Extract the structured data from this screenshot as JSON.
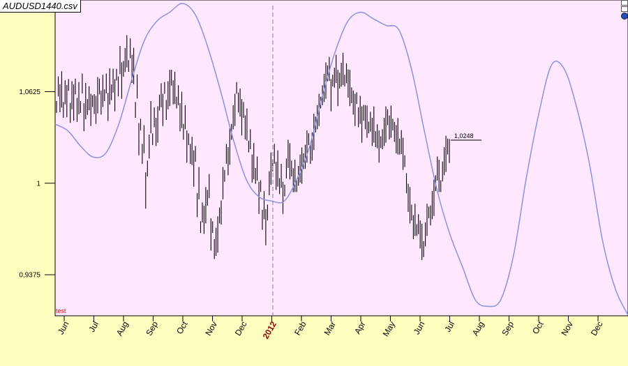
{
  "window": {
    "title": "AUDUSD1440.csv"
  },
  "colors": {
    "background": "#ffffc0",
    "plot_area": "#ffe8ff",
    "price_bars": "#000000",
    "forecast_line": "#8c96e6",
    "test_label": "#e01010",
    "year_label": "#8b0000"
  },
  "indicator_label": "test",
  "last_price_label": "1,0248",
  "chart_data": [
    {
      "type": "ohlc",
      "series": [
        {
          "name": "",
          "values": [
            1.052,
            1.066,
            1.058,
            1.064,
            1.05,
            1.062,
            1.056,
            1.067,
            1.048,
            1.06,
            1.055,
            1.066,
            1.05,
            1.058,
            1.052,
            1.068,
            1.045,
            1.056,
            1.052,
            1.058,
            1.05,
            1.056,
            1.054,
            1.05,
            1.06,
            1.066,
            1.055,
            1.063,
            1.06,
            1.068,
            1.052,
            1.066,
            1.062,
            1.07,
            1.06,
            1.074,
            1.066,
            1.084,
            1.07,
            1.078,
            1.084,
            1.09,
            1.08,
            1.092,
            1.078,
            1.08,
            1.05,
            1.066,
            1.03,
            1.04,
            1.02,
            1.03,
            0.995,
            1.01,
            1.025,
            1.045,
            1.03,
            1.045,
            1.035,
            1.04,
            1.055,
            1.06,
            1.05,
            1.065,
            1.05,
            1.06,
            1.065,
            1.072,
            1.062,
            1.065,
            1.055,
            1.06,
            1.045,
            1.05,
            1.035,
            1.045,
            1.025,
            1.03,
            1.02,
            1.022,
            1.01,
            1.02,
            0.985,
            1,
            0.97,
            0.98,
            0.975,
            0.985,
            0.99,
            0.998,
            0.965,
            0.97,
            0.955,
            0.96,
            0.965,
            0.978,
            0.98,
            1,
            1.005,
            1.02,
            1.015,
            1.025,
            1.035,
            1.045,
            1.05,
            1.065,
            1.055,
            1.055,
            1.045,
            1.05,
            1.038,
            1.04,
            1.025,
            1.03,
            1.01,
            1.015,
            1.005,
            1.01,
            0.99,
            0.998,
            0.975,
            0.985,
            0.97,
            0.98,
            1,
            1.01,
            1.012,
            1.02,
            1.005,
            1.01,
            0.998,
            1.005,
            0.99,
            0.995,
            1.01,
            1.02,
            1.015,
            1.01,
            1.002,
            1.005,
            0.998,
            1.005,
            1.01,
            1.012,
            1.015,
            1.018,
            1.025,
            1.03,
            1.02,
            1.025,
            1.035,
            1.04,
            1.045,
            1.05,
            1.055,
            1.06,
            1.065,
            1.07,
            1.075,
            1.078,
            1.06,
            1.07,
            1.072,
            1.078,
            1.065,
            1.07,
            1.074,
            1.078,
            1.07,
            1.075,
            1.068,
            1.065,
            1.06,
            1.055,
            1.05,
            1.058,
            1.045,
            1.05,
            1.04,
            1.048,
            1.045,
            1.042,
            1.038,
            1.042,
            1.035,
            1.04,
            1.03,
            1.032,
            1.025,
            1.028,
            1.03,
            1.035,
            1.04,
            1.045,
            1.038,
            1.042,
            1.04,
            1.035,
            1.03,
            1.032,
            1.025,
            1.028,
            1.02,
            1.015,
            1,
            0.99,
            0.985,
            0.98,
            0.97,
            0.975,
            0.968,
            0.972,
            0.965,
            0.96,
            0.955,
            0.965,
            0.975,
            0.98,
            0.978,
            0.985,
            0.99,
            1,
            1.01,
            1.005,
            0.998,
            1.008,
            1.015,
            1.02,
            1.025,
            1.022
          ]
        }
      ],
      "xlabel": "",
      "ylabel": "",
      "y_ticks": [
        "1,0625",
        "1",
        "0,9375"
      ],
      "ylim": [
        0.9095,
        1.125
      ],
      "month_labels": [
        "Jun",
        "Jul",
        "Aug",
        "Sep",
        "Oct",
        "Nov",
        "Dec",
        "2012",
        "Feb",
        "Mar",
        "Apr",
        "May",
        "Jun",
        "Jul",
        "Aug",
        "Sep",
        "Oct",
        "Nov",
        "Dec"
      ],
      "year_separator_label": "2012",
      "last_value": 1.0248,
      "grid": false,
      "legend": "none"
    },
    {
      "type": "line",
      "series": [
        {
          "name": "",
          "values": [
            0.45,
            0.42,
            0.35,
            0.3,
            0.32,
            0.45,
            0.65,
            0.83,
            0.92,
            0.96,
            1,
            0.95,
            0.8,
            0.6,
            0.38,
            0.2,
            0.12,
            0.1,
            0.1,
            0.2,
            0.35,
            0.58,
            0.78,
            0.92,
            0.96,
            0.93,
            0.9,
            0.88,
            0.7,
            0.42,
            0.15,
            -0.05,
            -0.2,
            -0.35,
            -0.38,
            -0.35,
            -0.15,
            0.2,
            0.5,
            0.72,
            0.7,
            0.52,
            0.26,
            -0.08,
            -0.3,
            -0.42
          ]
        }
      ],
      "note_axis": "no scale shown",
      "grid": false,
      "legend": "none"
    }
  ]
}
